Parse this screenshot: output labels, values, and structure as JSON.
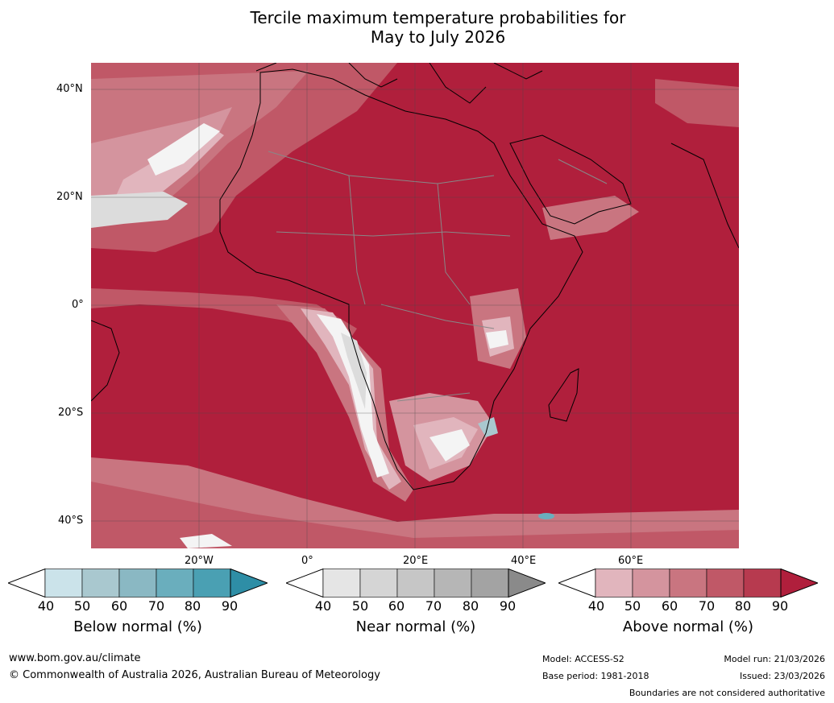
{
  "title": {
    "line1": "Tercile maximum temperature probabilities for",
    "line2": "May to July 2026"
  },
  "map": {
    "lat_labels": [
      "40°N",
      "20°N",
      "0°",
      "20°S",
      "40°S"
    ],
    "lon_labels": [
      "20°W",
      "0°",
      "20°E",
      "40°E",
      "60°E"
    ]
  },
  "colorbars": [
    {
      "label": "Below normal (%)",
      "ticks": [
        "40",
        "50",
        "60",
        "70",
        "80",
        "90"
      ],
      "colors": [
        "#ffffff",
        "#cbe3ea",
        "#a9c8cf",
        "#8ab8c3",
        "#6aaebd",
        "#4aa0b3",
        "#2e8ea6"
      ]
    },
    {
      "label": "Near normal (%)",
      "ticks": [
        "40",
        "50",
        "60",
        "70",
        "80",
        "90"
      ],
      "colors": [
        "#ffffff",
        "#e5e5e5",
        "#d5d5d5",
        "#c6c6c6",
        "#b6b6b6",
        "#a3a3a3",
        "#8a8a8a"
      ]
    },
    {
      "label": "Above normal (%)",
      "ticks": [
        "40",
        "50",
        "60",
        "70",
        "80",
        "90"
      ],
      "colors": [
        "#ffffff",
        "#e1b5bd",
        "#d4949e",
        "#c97580",
        "#c05867",
        "#b73a4f",
        "#b01f3c"
      ]
    }
  ],
  "footer": {
    "website": "www.bom.gov.au/climate",
    "copyright": "© Commonwealth of Australia 2026, Australian Bureau of Meteorology",
    "model": "Model: ACCESS-S2",
    "base_period": "Base period: 1981-2018",
    "model_run": "Model run: 21/03/2026",
    "issued": "Issued: 23/03/2026",
    "disclaimer": "Boundaries are not considered authoritative"
  }
}
